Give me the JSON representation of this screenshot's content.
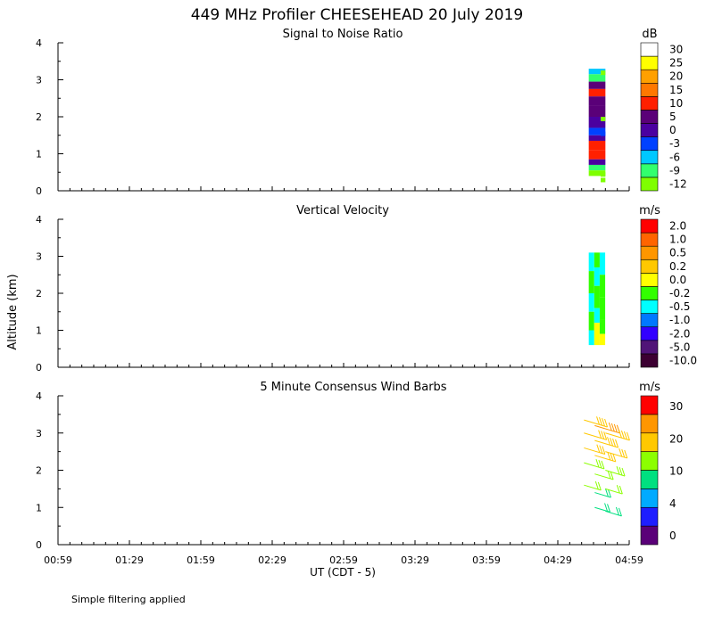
{
  "title": "449 MHz Profiler CHEESEHEAD 20 July 2019",
  "footer": "Simple filtering applied",
  "colors": {
    "snr": [
      "#7fff00",
      "#32ff6e",
      "#00c8ff",
      "#0041ff",
      "#4b00a0",
      "#5a0078",
      "#ff2000",
      "#ff7800",
      "#ffa000",
      "#ffff00",
      "#ffffff"
    ],
    "vv": [
      "#3c0032",
      "#501478",
      "#3200ff",
      "#0078ff",
      "#00ffff",
      "#32ff00",
      "#ffff00",
      "#ffc800",
      "#ff9600",
      "#ff6400",
      "#ff0000"
    ],
    "wind": [
      "#5a0078",
      "#1e1eff",
      "#00aaff",
      "#00e080",
      "#8cff00",
      "#ffc800",
      "#ff9600",
      "#ff0000"
    ]
  },
  "chart_data": [
    {
      "type": "heatmap",
      "title": "Signal to Noise Ratio",
      "ylabel": "",
      "xlabel": "",
      "ylim": [
        0,
        4
      ],
      "yticks": [
        "0",
        "1",
        "2",
        "3",
        "4"
      ],
      "colorbar": {
        "unit": "dB",
        "labels": [
          "-12",
          "-9",
          "-6",
          "-3",
          "0",
          "5",
          "10",
          "15",
          "20",
          "25",
          "30"
        ]
      },
      "data_range": {
        "time": [
          "04:42",
          "04:48"
        ],
        "altitude_km": [
          0.3,
          3.3
        ]
      },
      "profile": [
        {
          "altitude_km": 3.2,
          "snr_db": -6
        },
        {
          "altitude_km": 2.7,
          "snr_db": 12
        },
        {
          "altitude_km": 2.2,
          "snr_db": 3
        },
        {
          "altitude_km": 1.6,
          "snr_db": -3
        },
        {
          "altitude_km": 1.1,
          "snr_db": 10
        },
        {
          "altitude_km": 0.6,
          "snr_db": -9
        }
      ]
    },
    {
      "type": "heatmap",
      "title": "Vertical Velocity",
      "ylabel": "Altitude (km)",
      "xlabel": "",
      "ylim": [
        0,
        4
      ],
      "yticks": [
        "0",
        "1",
        "2",
        "3",
        "4"
      ],
      "colorbar": {
        "unit": "m/s",
        "labels": [
          "-10.0",
          "-5.0",
          "-2.0",
          "-1.0",
          "-0.5",
          "-0.2",
          "0.0",
          "0.2",
          "0.5",
          "1.0",
          "2.0"
        ]
      },
      "data_range": {
        "time": [
          "04:42",
          "04:48"
        ],
        "altitude_km": [
          0.6,
          3.1
        ]
      }
    },
    {
      "type": "scatter",
      "title": "5 Minute Consensus Wind Barbs",
      "ylabel": "",
      "xlabel": "UT  (CDT - 5)",
      "ylim": [
        0,
        4
      ],
      "yticks": [
        "0",
        "1",
        "2",
        "3",
        "4"
      ],
      "xticks": [
        "00:59",
        "01:29",
        "01:59",
        "02:29",
        "02:59",
        "03:29",
        "03:59",
        "04:29",
        "04:59"
      ],
      "colorbar": {
        "unit": "m/s",
        "labels": [
          "0",
          "4",
          "10",
          "20",
          "30"
        ]
      },
      "barbs": [
        {
          "time_min_offset": 0,
          "altitude_km": 3.35,
          "speed": 18
        },
        {
          "time_min_offset": 0,
          "altitude_km": 3.0,
          "speed": 17
        },
        {
          "time_min_offset": 0,
          "altitude_km": 2.6,
          "speed": 15
        },
        {
          "time_min_offset": 0,
          "altitude_km": 2.2,
          "speed": 14
        },
        {
          "time_min_offset": 0,
          "altitude_km": 1.6,
          "speed": 10
        },
        {
          "time_min_offset": 5,
          "altitude_km": 3.2,
          "speed": 20
        },
        {
          "time_min_offset": 5,
          "altitude_km": 2.8,
          "speed": 18
        },
        {
          "time_min_offset": 5,
          "altitude_km": 2.4,
          "speed": 15
        },
        {
          "time_min_offset": 5,
          "altitude_km": 1.9,
          "speed": 12
        },
        {
          "time_min_offset": 5,
          "altitude_km": 1.4,
          "speed": 9
        },
        {
          "time_min_offset": 5,
          "altitude_km": 1.0,
          "speed": 8
        },
        {
          "time_min_offset": 10,
          "altitude_km": 3.0,
          "speed": 19
        },
        {
          "time_min_offset": 10,
          "altitude_km": 2.5,
          "speed": 16
        },
        {
          "time_min_offset": 10,
          "altitude_km": 2.0,
          "speed": 13
        },
        {
          "time_min_offset": 10,
          "altitude_km": 1.5,
          "speed": 10
        },
        {
          "time_min_offset": 10,
          "altitude_km": 0.9,
          "speed": 9
        }
      ]
    }
  ]
}
